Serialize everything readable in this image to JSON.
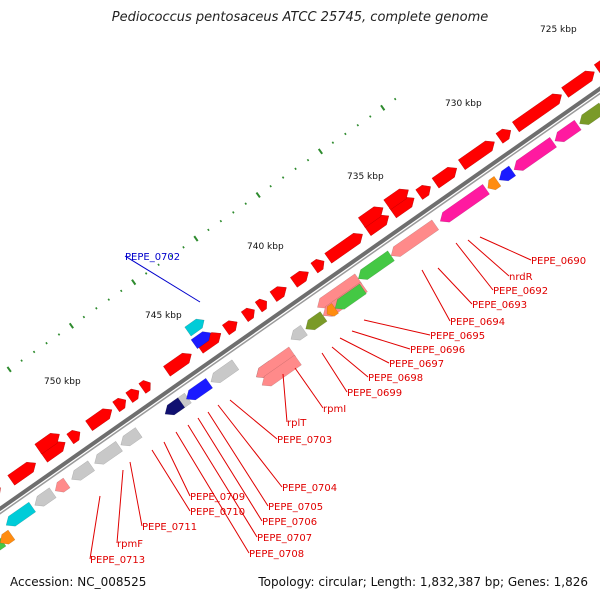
{
  "title": "Pediococcus pentosaceus ATCC 25745, complete genome",
  "footer": {
    "accession": "Accession: NC_008525",
    "summary": "Topology: circular; Length: 1,832,387 bp; Genes: 1,826"
  },
  "scale": {
    "ticks": [
      {
        "label": "725 kbp",
        "pos": 725
      },
      {
        "label": "730 kbp",
        "pos": 730
      },
      {
        "label": "735 kbp",
        "pos": 735
      },
      {
        "label": "740 kbp",
        "pos": 740
      },
      {
        "label": "745 kbp",
        "pos": 745
      },
      {
        "label": "750 kbp",
        "pos": 750
      }
    ]
  },
  "colors": {
    "backbone": "#7a7a7a",
    "red": "#ff0000",
    "pink": "#ff8a8a",
    "gray": "#c8c8c8",
    "green": "#44c844",
    "olive": "#7a9a28",
    "cyan": "#00ccd8",
    "blue": "#1a1aff",
    "navy": "#101070",
    "magenta": "#ff1aa0",
    "orange": "#ff8c10",
    "tick_green": "#2e8b2e",
    "label_red": "#e00000",
    "label_blue": "#0000cc"
  },
  "gene_labels": [
    {
      "name": "PEPE_0690",
      "color": "red"
    },
    {
      "name": "nrdR",
      "color": "red"
    },
    {
      "name": "PEPE_0692",
      "color": "red"
    },
    {
      "name": "PEPE_0693",
      "color": "red"
    },
    {
      "name": "PEPE_0694",
      "color": "red"
    },
    {
      "name": "PEPE_0695",
      "color": "red"
    },
    {
      "name": "PEPE_0696",
      "color": "red"
    },
    {
      "name": "PEPE_0697",
      "color": "red"
    },
    {
      "name": "PEPE_0698",
      "color": "red"
    },
    {
      "name": "PEPE_0699",
      "color": "red"
    },
    {
      "name": "rpmI",
      "color": "red"
    },
    {
      "name": "rplT",
      "color": "red"
    },
    {
      "name": "PEPE_0702",
      "color": "blue"
    },
    {
      "name": "PEPE_0703",
      "color": "red"
    },
    {
      "name": "PEPE_0704",
      "color": "red"
    },
    {
      "name": "PEPE_0705",
      "color": "red"
    },
    {
      "name": "PEPE_0706",
      "color": "red"
    },
    {
      "name": "PEPE_0707",
      "color": "red"
    },
    {
      "name": "PEPE_0708",
      "color": "red"
    },
    {
      "name": "PEPE_0709",
      "color": "red"
    },
    {
      "name": "PEPE_0710",
      "color": "red"
    },
    {
      "name": "PEPE_0711",
      "color": "red"
    },
    {
      "name": "rpmF",
      "color": "red"
    },
    {
      "name": "PEPE_0713",
      "color": "red"
    }
  ],
  "tracks": {
    "forward_cds": [
      "red",
      "red",
      "red",
      "red",
      "red",
      "red",
      "red",
      "red",
      "red",
      "red",
      "red",
      "red",
      "red",
      "red",
      "red",
      "red",
      "red",
      "red",
      "red",
      "red",
      "red",
      "red",
      "red",
      "red",
      "red",
      "red",
      "red",
      "red"
    ],
    "reverse_cds": [
      "gray",
      "olive",
      "magenta",
      "magenta",
      "blue",
      "orange",
      "magenta",
      "pink",
      "pink",
      "green",
      "green",
      "orange",
      "olive",
      "gray",
      "pink",
      "pink",
      "gray",
      "gray",
      "blue",
      "navy",
      "gray",
      "gray",
      "gray",
      "pink",
      "gray",
      "cyan",
      "green",
      "orange",
      "green"
    ],
    "outer_feature": [
      "cyan",
      "blue"
    ]
  }
}
